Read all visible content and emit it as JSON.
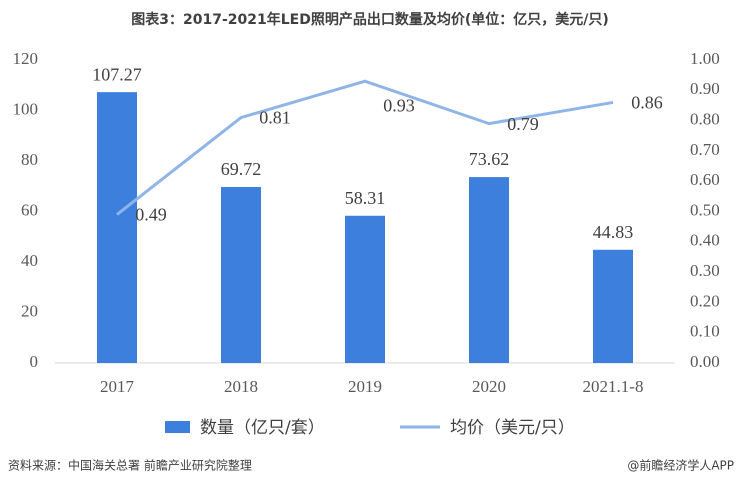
{
  "chart_data": {
    "type": "combo",
    "title": "图表3：2017-2021年LED照明产品出口数量及均价(单位：亿只，美元/只)",
    "categories": [
      "2017",
      "2018",
      "2019",
      "2020",
      "2021.1-8"
    ],
    "series": [
      {
        "name": "数量（亿只/套）",
        "type": "bar",
        "color": "#3d7fdc",
        "values": [
          107.27,
          69.72,
          58.31,
          73.62,
          44.83
        ]
      },
      {
        "name": "均价（美元/只）",
        "type": "line",
        "axis": "y2",
        "color": "#8fb4e8",
        "values": [
          0.49,
          0.81,
          0.93,
          0.79,
          0.86
        ]
      }
    ],
    "ylim": [
      0,
      120
    ],
    "yticks": [
      0,
      20,
      40,
      60,
      80,
      100,
      120
    ],
    "y2lim": [
      0,
      1
    ],
    "y2ticks": [
      {
        "value": 0,
        "label": "0.00"
      },
      {
        "value": 0.1,
        "label": "0.10"
      },
      {
        "value": 0.2,
        "label": "0.20"
      },
      {
        "value": 0.3,
        "label": "0.30"
      },
      {
        "value": 0.4,
        "label": "0.40"
      },
      {
        "value": 0.5,
        "label": "0.50"
      },
      {
        "value": 0.6,
        "label": "0.60"
      },
      {
        "value": 0.7,
        "label": "0.70"
      },
      {
        "value": 0.8,
        "label": "0.80"
      },
      {
        "value": 0.9,
        "label": "0.90"
      },
      {
        "value": 1,
        "label": "1.00"
      }
    ],
    "grid": false,
    "source": "资料来源：中国海关总署 前瞻产业研究院整理",
    "brand": "@前瞻经济学人APP"
  }
}
